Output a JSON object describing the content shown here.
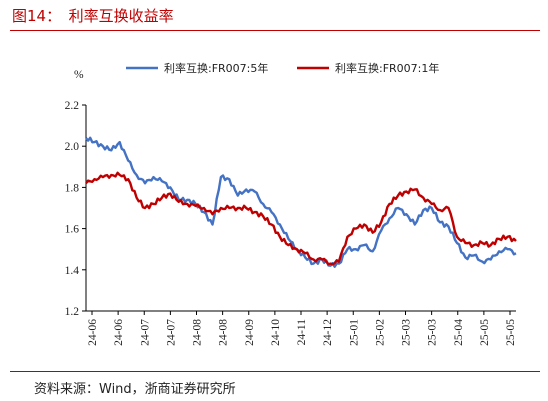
{
  "figure": {
    "title": "图14：　利率互换收益率",
    "source": "资料来源：Wind，浙商证券研究所"
  },
  "colors": {
    "accent": "#c00000",
    "series_5y": "#4472c4",
    "series_1y": "#c00000"
  },
  "chart_data": {
    "type": "line",
    "y_unit": "%",
    "ylim": [
      1.2,
      2.2
    ],
    "yticks": [
      1.2,
      1.4,
      1.6,
      1.8,
      2.0,
      2.2
    ],
    "x_tick_labels": [
      "24-06",
      "24-06",
      "24-07",
      "24-07",
      "24-08",
      "24-08",
      "24-09",
      "24-10",
      "24-11",
      "24-12",
      "25-01",
      "25-02",
      "25-03",
      "25-03",
      "25-04",
      "25-05",
      "25-05"
    ],
    "grid": false,
    "legend_position": "top",
    "x": [
      "2024-06-03",
      "2024-06-10",
      "2024-06-17",
      "2024-06-24",
      "2024-07-01",
      "2024-07-08",
      "2024-07-15",
      "2024-07-22",
      "2024-07-29",
      "2024-08-05",
      "2024-08-12",
      "2024-08-19",
      "2024-08-26",
      "2024-09-02",
      "2024-09-09",
      "2024-09-16",
      "2024-09-23",
      "2024-09-30",
      "2024-10-07",
      "2024-10-14",
      "2024-10-21",
      "2024-10-28",
      "2024-11-04",
      "2024-11-11",
      "2024-11-18",
      "2024-11-25",
      "2024-12-02",
      "2024-12-09",
      "2024-12-16",
      "2024-12-23",
      "2024-12-30",
      "2025-01-06",
      "2025-01-13",
      "2025-01-20",
      "2025-01-27",
      "2025-02-03",
      "2025-02-10",
      "2025-02-17",
      "2025-02-24",
      "2025-03-03",
      "2025-03-10",
      "2025-03-17",
      "2025-03-24",
      "2025-03-31",
      "2025-04-07",
      "2025-04-14",
      "2025-04-21",
      "2025-04-28",
      "2025-05-05",
      "2025-05-12",
      "2025-05-19",
      "2025-05-26"
    ],
    "series": [
      {
        "name": "利率互换:FR007:5年",
        "color": "#4472c4",
        "values": [
          2.04,
          2.02,
          2.0,
          1.98,
          2.02,
          1.93,
          1.86,
          1.82,
          1.85,
          1.83,
          1.8,
          1.74,
          1.74,
          1.72,
          1.68,
          1.62,
          1.85,
          1.84,
          1.76,
          1.79,
          1.78,
          1.72,
          1.68,
          1.62,
          1.55,
          1.5,
          1.46,
          1.43,
          1.45,
          1.42,
          1.43,
          1.5,
          1.5,
          1.52,
          1.49,
          1.59,
          1.65,
          1.7,
          1.67,
          1.62,
          1.69,
          1.7,
          1.63,
          1.61,
          1.53,
          1.46,
          1.47,
          1.44,
          1.45,
          1.49,
          1.5,
          1.48
        ]
      },
      {
        "name": "利率互换:FR007:1年",
        "color": "#c00000",
        "values": [
          1.82,
          1.84,
          1.85,
          1.86,
          1.86,
          1.84,
          1.75,
          1.7,
          1.72,
          1.75,
          1.77,
          1.73,
          1.72,
          1.71,
          1.7,
          1.67,
          1.7,
          1.7,
          1.7,
          1.7,
          1.68,
          1.66,
          1.62,
          1.56,
          1.52,
          1.5,
          1.48,
          1.45,
          1.45,
          1.43,
          1.44,
          1.56,
          1.6,
          1.62,
          1.58,
          1.63,
          1.72,
          1.76,
          1.78,
          1.79,
          1.75,
          1.72,
          1.69,
          1.7,
          1.56,
          1.53,
          1.52,
          1.53,
          1.52,
          1.55,
          1.56,
          1.54
        ]
      }
    ]
  }
}
